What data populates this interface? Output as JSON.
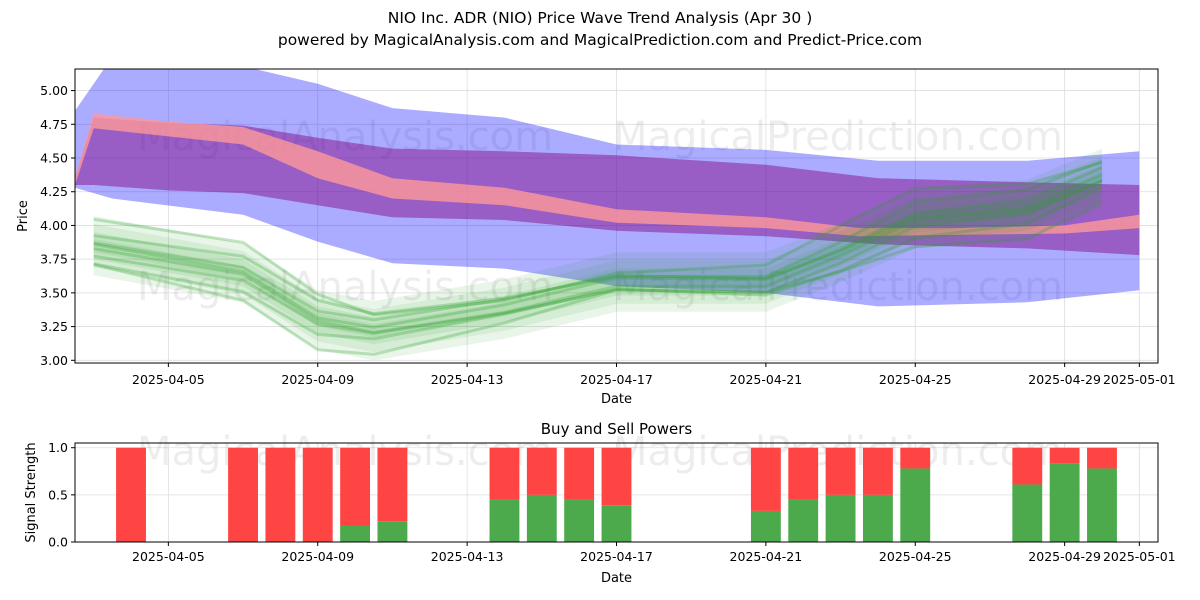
{
  "header": {
    "title": "NIO Inc. ADR (NIO) Price Wave Trend Analysis (Apr 30 )",
    "subtitle": "powered by MagicalAnalysis.com and MagicalPrediction.com and Predict-Price.com"
  },
  "watermarks": [
    "MagicalAnalysis.com",
    "MagicalPrediction.com"
  ],
  "colors": {
    "blue_band": "#0000ff",
    "purple_band": "#800080",
    "red_band": "#ff9999",
    "green_band": "#2ca02c",
    "buy": "#4caa4c",
    "sell": "#ff4444",
    "grid": "#dddddd"
  },
  "chart_data": [
    {
      "type": "area",
      "title": "",
      "xlabel": "Date",
      "ylabel": "Price",
      "x_range": [
        "2025-04-02T12:00",
        "2025-05-01T12:00"
      ],
      "ylim": [
        2.98,
        5.16
      ],
      "xticks": [
        "2025-04-05",
        "2025-04-09",
        "2025-04-13",
        "2025-04-17",
        "2025-04-21",
        "2025-04-25",
        "2025-04-29",
        "2025-05-01"
      ],
      "yticks": [
        3.0,
        3.25,
        3.5,
        3.75,
        4.0,
        4.25,
        4.5,
        4.75,
        5.0
      ],
      "grid": true,
      "bands": [
        {
          "name": "Blue wide band",
          "color": "#0000ff",
          "opacity": 0.33,
          "x": [
            "2025-04-02T12:00",
            "2025-04-03T12:00",
            "2025-04-07T00:00",
            "2025-04-09T00:00",
            "2025-04-11T00:00",
            "2025-04-14T00:00",
            "2025-04-17T00:00",
            "2025-04-21T00:00",
            "2025-04-24T00:00",
            "2025-04-28T00:00",
            "2025-05-01T00:00"
          ],
          "upper": [
            4.85,
            5.25,
            5.18,
            5.05,
            4.87,
            4.8,
            4.6,
            4.56,
            4.48,
            4.48,
            4.55
          ],
          "lower": [
            4.28,
            4.2,
            4.08,
            3.88,
            3.72,
            3.68,
            3.55,
            3.5,
            3.4,
            3.43,
            3.52
          ]
        },
        {
          "name": "Purple band",
          "color": "#800080",
          "opacity": 0.45,
          "x": [
            "2025-04-02T12:00",
            "2025-04-03T00:00",
            "2025-04-05T00:00",
            "2025-04-07T00:00",
            "2025-04-09T00:00",
            "2025-04-11T00:00",
            "2025-04-14T00:00",
            "2025-04-17T00:00",
            "2025-04-21T00:00",
            "2025-04-24T00:00",
            "2025-04-28T00:00",
            "2025-05-01T00:00"
          ],
          "upper": [
            4.35,
            4.8,
            4.76,
            4.74,
            4.65,
            4.57,
            4.55,
            4.52,
            4.45,
            4.35,
            4.32,
            4.3
          ],
          "lower": [
            4.3,
            4.3,
            4.26,
            4.24,
            4.15,
            4.06,
            4.04,
            3.96,
            3.92,
            3.86,
            3.83,
            3.78
          ]
        },
        {
          "name": "Red band",
          "color": "#ff9999",
          "opacity": 0.8,
          "x": [
            "2025-04-02T12:00",
            "2025-04-03T00:00",
            "2025-04-05T00:00",
            "2025-04-07T00:00",
            "2025-04-09T00:00",
            "2025-04-11T00:00",
            "2025-04-14T00:00",
            "2025-04-17T00:00",
            "2025-04-21T00:00",
            "2025-04-23T12:00",
            "2025-04-26T00:00",
            "2025-04-29T00:00",
            "2025-05-01T00:00"
          ],
          "upper": [
            4.35,
            4.83,
            4.77,
            4.73,
            4.55,
            4.35,
            4.28,
            4.12,
            4.06,
            3.98,
            3.98,
            4.0,
            4.08
          ],
          "lower": [
            4.3,
            4.72,
            4.66,
            4.6,
            4.35,
            4.2,
            4.15,
            4.02,
            3.98,
            3.92,
            3.93,
            3.94,
            3.98
          ]
        }
      ],
      "green_lines": {
        "color": "#2ca02c",
        "x": [
          "2025-04-03T00:00",
          "2025-04-07T00:00",
          "2025-04-09T00:00",
          "2025-04-10T12:00",
          "2025-04-14T00:00",
          "2025-04-17T00:00",
          "2025-04-21T00:00",
          "2025-04-23T00:00",
          "2025-04-25T00:00",
          "2025-04-28T00:00",
          "2025-04-30T00:00"
        ],
        "center": [
          3.85,
          3.65,
          3.3,
          3.22,
          3.38,
          3.58,
          3.58,
          3.8,
          4.05,
          4.12,
          4.35
        ],
        "offsets": [
          -0.14,
          -0.09,
          -0.05,
          -0.02,
          0.02,
          0.05,
          0.09,
          0.14
        ],
        "fans": [
          0.05,
          0.1,
          0.16,
          0.22
        ]
      }
    },
    {
      "type": "bar",
      "title": "Buy and Sell Powers",
      "xlabel": "Date",
      "ylabel": "Signal Strength",
      "ylim": [
        0,
        1.05
      ],
      "yticks": [
        0.0,
        0.5,
        1.0
      ],
      "xticks": [
        "2025-04-05",
        "2025-04-09",
        "2025-04-13",
        "2025-04-17",
        "2025-04-21",
        "2025-04-25",
        "2025-04-29",
        "2025-05-01"
      ],
      "x": [
        "2025-04-04",
        "2025-04-07",
        "2025-04-08",
        "2025-04-09",
        "2025-04-10",
        "2025-04-11",
        "2025-04-14",
        "2025-04-15",
        "2025-04-16",
        "2025-04-17",
        "2025-04-21",
        "2025-04-22",
        "2025-04-23",
        "2025-04-24",
        "2025-04-25",
        "2025-04-28",
        "2025-04-29",
        "2025-04-30"
      ],
      "series": [
        {
          "name": "Buy",
          "color": "#4caa4c",
          "values": [
            0,
            0,
            0,
            0,
            0.17,
            0.22,
            0.45,
            0.5,
            0.45,
            0.39,
            0.33,
            0.45,
            0.5,
            0.5,
            0.78,
            0.61,
            0.83,
            0.78
          ]
        },
        {
          "name": "Sell",
          "color": "#ff4444",
          "values": [
            1.0,
            1.0,
            1.0,
            1.0,
            0.83,
            0.78,
            0.55,
            0.5,
            0.55,
            0.61,
            0.67,
            0.55,
            0.5,
            0.5,
            0.22,
            0.39,
            0.17,
            0.22
          ]
        }
      ]
    }
  ]
}
